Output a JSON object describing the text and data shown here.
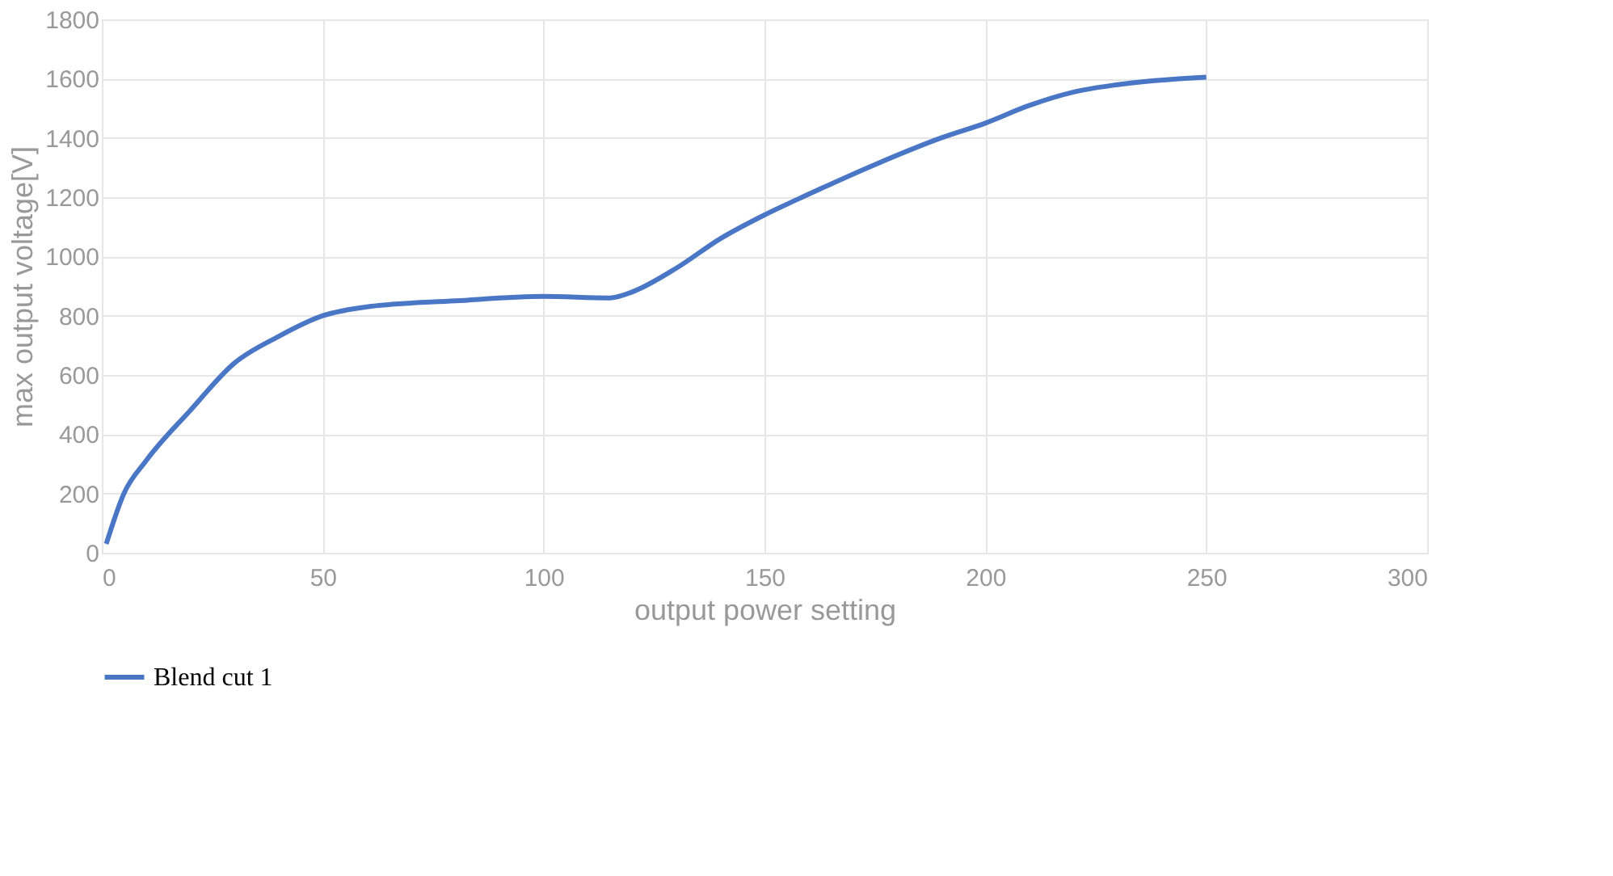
{
  "chart_data": {
    "type": "line",
    "xlabel": "output power setting",
    "ylabel": "max output voltage[V]",
    "x": [
      1,
      5,
      10,
      20,
      30,
      40,
      50,
      60,
      80,
      100,
      115,
      120,
      130,
      140,
      150,
      160,
      175,
      190,
      200,
      210,
      220,
      230,
      250
    ],
    "series": [
      {
        "name": "Blend cut 1",
        "color": "#4a76c6",
        "values": [
          30,
          200,
          310,
          480,
          640,
          730,
          800,
          830,
          850,
          865,
          860,
          880,
          960,
          1060,
          1140,
          1210,
          1310,
          1400,
          1450,
          1510,
          1555,
          1580,
          1605
        ]
      }
    ],
    "xlim": [
      0,
      300
    ],
    "xticks": [
      0,
      50,
      100,
      150,
      200,
      250,
      300
    ],
    "ylim": [
      0,
      1800
    ],
    "yticks": [
      0,
      200,
      400,
      600,
      800,
      1000,
      1200,
      1400,
      1600,
      1800
    ],
    "grid": true,
    "legend": "bottom",
    "marker": "none",
    "line_style": "solid"
  }
}
